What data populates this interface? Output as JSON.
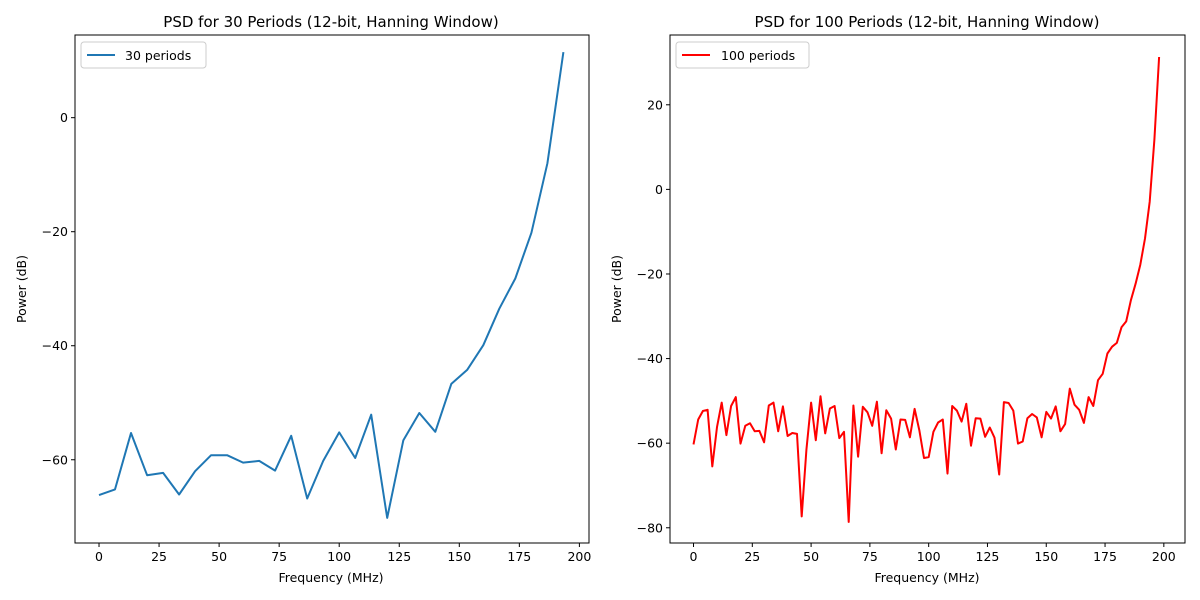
{
  "chart_data": [
    {
      "type": "line",
      "title": "PSD for 30 Periods (12-bit, Hanning Window)",
      "xlabel": "Frequency (MHz)",
      "ylabel": "Power (dB)",
      "xlim": [
        -10,
        204
      ],
      "ylim": [
        -74.6,
        14.5
      ],
      "xticks": [
        0,
        25,
        50,
        75,
        100,
        125,
        150,
        175,
        200
      ],
      "yticks": [
        -60,
        -40,
        -20,
        0
      ],
      "grid": false,
      "legend_position": "top-left",
      "series": [
        {
          "name": "30 periods",
          "color": "#1f77b4",
          "x": [
            0,
            6.67,
            13.33,
            20,
            26.67,
            33.33,
            40,
            46.67,
            53.33,
            60,
            66.67,
            73.33,
            80,
            86.67,
            93.33,
            100,
            106.67,
            113.33,
            120,
            126.67,
            133.33,
            140,
            146.67,
            153.33,
            160,
            166.67,
            173.33,
            180,
            186.67,
            193.33
          ],
          "y": [
            -66.2,
            -65.2,
            -55.3,
            -62.7,
            -62.3,
            -66.1,
            -62.0,
            -59.2,
            -59.2,
            -60.5,
            -60.2,
            -61.9,
            -55.8,
            -66.8,
            -60.2,
            -55.2,
            -59.7,
            -52.1,
            -70.2,
            -56.6,
            -51.8,
            -55.1,
            -46.7,
            -44.2,
            -39.9,
            -33.5,
            -28.2,
            -20.2,
            -8.0,
            11.5
          ]
        }
      ]
    },
    {
      "type": "line",
      "title": "PSD for 100 Periods (12-bit, Hanning Window)",
      "xlabel": "Frequency (MHz)",
      "ylabel": "Power (dB)",
      "xlim": [
        -10,
        209
      ],
      "ylim": [
        -83.6,
        36.5
      ],
      "xticks": [
        0,
        25,
        50,
        75,
        100,
        125,
        150,
        175,
        200
      ],
      "yticks": [
        -80,
        -60,
        -40,
        -20,
        0,
        20
      ],
      "grid": false,
      "legend_position": "top-left",
      "series": [
        {
          "name": "100 periods",
          "color": "#ff0000",
          "x": [
            0,
            2,
            4,
            6,
            8,
            10,
            12,
            14,
            16,
            18,
            20,
            22,
            24,
            26,
            28,
            30,
            32,
            34,
            36,
            38,
            40,
            42,
            44,
            46,
            48,
            50,
            52,
            54,
            56,
            58,
            60,
            62,
            64,
            66,
            68,
            70,
            72,
            74,
            76,
            78,
            80,
            82,
            84,
            86,
            88,
            90,
            92,
            94,
            96,
            98,
            100,
            102,
            104,
            106,
            108,
            110,
            112,
            114,
            116,
            118,
            120,
            122,
            124,
            126,
            128,
            130,
            132,
            134,
            136,
            138,
            140,
            142,
            144,
            146,
            148,
            150,
            152,
            154,
            156,
            158,
            160,
            162,
            164,
            166,
            168,
            170,
            172,
            174,
            176,
            178,
            180,
            182,
            184,
            186,
            188,
            190,
            192,
            194,
            196,
            198
          ],
          "y": [
            -60.3,
            -54.4,
            -52.4,
            -52.1,
            -65.5,
            -56.2,
            -50.4,
            -58.1,
            -51.2,
            -49.1,
            -60.1,
            -55.9,
            -55.3,
            -57.2,
            -57.1,
            -59.8,
            -51.1,
            -50.4,
            -57.2,
            -51.3,
            -58.3,
            -57.6,
            -57.8,
            -77.3,
            -61.6,
            -50.4,
            -59.3,
            -48.9,
            -57.7,
            -51.8,
            -51.2,
            -58.8,
            -57.3,
            -78.6,
            -51.1,
            -63.2,
            -51.4,
            -52.7,
            -55.9,
            -50.2,
            -62.4,
            -52.2,
            -54.2,
            -61.5,
            -54.4,
            -54.5,
            -58.6,
            -51.9,
            -56.9,
            -63.5,
            -63.3,
            -57.3,
            -55.1,
            -54.4,
            -67.2,
            -51.2,
            -52.3,
            -54.9,
            -50.7,
            -60.6,
            -54.1,
            -54.2,
            -58.5,
            -56.3,
            -58.7,
            -67.4,
            -50.3,
            -50.5,
            -52.3,
            -60.1,
            -59.6,
            -54.1,
            -53.1,
            -53.9,
            -58.6,
            -52.6,
            -54.2,
            -51.3,
            -57.2,
            -55.5,
            -47.1,
            -50.9,
            -52.1,
            -55.2,
            -49.1,
            -51.2,
            -45.1,
            -43.6,
            -38.8,
            -37.2,
            -36.3,
            -32.6,
            -31.2,
            -26.2,
            -22.3,
            -17.8,
            -11.6,
            -2.9,
            11.8,
            31.3
          ]
        }
      ]
    }
  ]
}
